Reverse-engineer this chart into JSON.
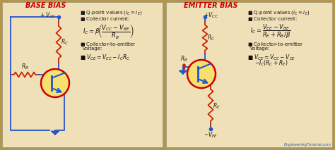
{
  "bg_color": "#f0e0b8",
  "outer_bg": "#b8934a",
  "title_left": "BASE BIAS",
  "title_right": "EMITTER BIAS",
  "title_color": "#cc0000",
  "text_color": "#1a1a1a",
  "circuit_line_color": "#2255cc",
  "resistor_color": "#cc2200",
  "transistor_fill": "#f5e070",
  "transistor_border": "#cc0000",
  "watermark": "EngineeringTutorial.com",
  "watermark_color": "#2255aa",
  "formula_color": "#111111"
}
